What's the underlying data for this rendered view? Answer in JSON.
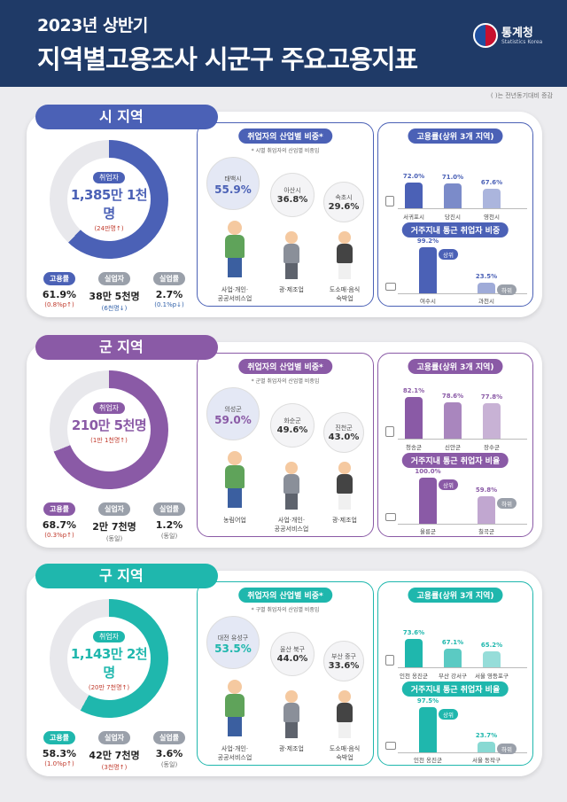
{
  "header": {
    "subtitle": "2023년 상반기",
    "title": "지역별고용조사 시군구 주요고용지표",
    "logo_text": "통계청",
    "logo_sub": "Statistics Korea",
    "note": "(  )는 전년동기대비 증감"
  },
  "colors": {
    "si": "#4b61b6",
    "gun": "#8a5aa6",
    "gu": "#1fb7ad"
  },
  "sections": [
    {
      "tab": "시 지역",
      "employed_label": "취업자",
      "employed_value": "1,385만 1천명",
      "employed_change": "(24만명↑)",
      "stats": [
        {
          "label": "고용률",
          "value": "61.9%",
          "change": "(0.8%p↑)",
          "dir": "up"
        },
        {
          "label": "실업자",
          "value": "38만 5천명",
          "change": "(6천명↓)",
          "dir": "down"
        },
        {
          "label": "실업률",
          "value": "2.7%",
          "change": "(0.1%p↓)",
          "dir": "down"
        }
      ],
      "industry_title": "취업자의 산업별 비중*",
      "industry_note": "* 시별 취업자의 산업별 비중임",
      "bubbles": [
        {
          "name": "태백시",
          "value": "55.9%"
        },
        {
          "name": "아산시",
          "value": "36.8%"
        },
        {
          "name": "속초시",
          "value": "29.6%"
        }
      ],
      "captions": [
        "사업·개인·\n공공서비스업",
        "광·제조업",
        "도소매·음식\n숙박업"
      ],
      "emp_title": "고용률(상위 3개 지역)",
      "emp_bars": [
        {
          "cat": "서귀포시",
          "value": 72.0,
          "label": "72.0%"
        },
        {
          "cat": "당진시",
          "value": 71.0,
          "label": "71.0%"
        },
        {
          "cat": "영천시",
          "value": 67.6,
          "label": "67.6%"
        }
      ],
      "commute_title": "거주지내 통근 취업자 비중",
      "commute_bars": [
        {
          "cat": "여수시",
          "value": 99.2,
          "label": "99.2%",
          "tag": "상위"
        },
        {
          "cat": "과천시",
          "value": 23.5,
          "label": "23.5%",
          "tag": "하위"
        }
      ]
    },
    {
      "tab": "군 지역",
      "employed_label": "취업자",
      "employed_value": "210만 5천명",
      "employed_change": "(1만 1천명↑)",
      "stats": [
        {
          "label": "고용률",
          "value": "68.7%",
          "change": "(0.3%p↑)",
          "dir": "up"
        },
        {
          "label": "실업자",
          "value": "2만 7천명",
          "change": "(동일)",
          "dir": "same"
        },
        {
          "label": "실업률",
          "value": "1.2%",
          "change": "(동일)",
          "dir": "same"
        }
      ],
      "industry_title": "취업자의 산업별 비중*",
      "industry_note": "* 군별 취업자의 산업별 비중임",
      "bubbles": [
        {
          "name": "의성군",
          "value": "59.0%"
        },
        {
          "name": "화순군",
          "value": "49.6%"
        },
        {
          "name": "진천군",
          "value": "43.0%"
        }
      ],
      "captions": [
        "농림어업",
        "사업·개인·\n공공서비스업",
        "광·제조업"
      ],
      "emp_title": "고용률(상위 3개 지역)",
      "emp_bars": [
        {
          "cat": "청송군",
          "value": 82.1,
          "label": "82.1%"
        },
        {
          "cat": "신안군",
          "value": 78.6,
          "label": "78.6%"
        },
        {
          "cat": "장수군",
          "value": 77.8,
          "label": "77.8%"
        }
      ],
      "commute_title": "거주지내 통근 취업자 비율",
      "commute_bars": [
        {
          "cat": "울릉군",
          "value": 100.0,
          "label": "100.0%",
          "tag": "상위"
        },
        {
          "cat": "칠곡군",
          "value": 59.8,
          "label": "59.8%",
          "tag": "하위"
        }
      ]
    },
    {
      "tab": "구 지역",
      "employed_label": "취업자",
      "employed_value": "1,143만 2천명",
      "employed_change": "(20만 7천명↑)",
      "stats": [
        {
          "label": "고용률",
          "value": "58.3%",
          "change": "(1.0%p↑)",
          "dir": "up"
        },
        {
          "label": "실업자",
          "value": "42만 7천명",
          "change": "(3천명↑)",
          "dir": "up"
        },
        {
          "label": "실업률",
          "value": "3.6%",
          "change": "(동일)",
          "dir": "same"
        }
      ],
      "industry_title": "취업자의 산업별 비중*",
      "industry_note": "* 구별 취업자의 산업별 비중임",
      "bubbles": [
        {
          "name": "대전 유성구",
          "value": "53.5%"
        },
        {
          "name": "울산 북구",
          "value": "44.0%"
        },
        {
          "name": "부산 중구",
          "value": "33.6%"
        }
      ],
      "captions": [
        "사업·개인·\n공공서비스업",
        "광·제조업",
        "도소매·음식\n숙박업"
      ],
      "emp_title": "고용률(상위 3개 지역)",
      "emp_bars": [
        {
          "cat": "인천 옹진군",
          "value": 73.6,
          "label": "73.6%"
        },
        {
          "cat": "부산 강서구",
          "value": 67.1,
          "label": "67.1%"
        },
        {
          "cat": "서울 영등포구",
          "value": 65.2,
          "label": "65.2%"
        }
      ],
      "commute_title": "거주지내 통근 취업자 비율",
      "commute_bars": [
        {
          "cat": "인천 옹진군",
          "value": 97.5,
          "label": "97.5%",
          "tag": "상위"
        },
        {
          "cat": "서울 동작구",
          "value": 23.7,
          "label": "23.7%",
          "tag": "하위"
        }
      ]
    }
  ]
}
